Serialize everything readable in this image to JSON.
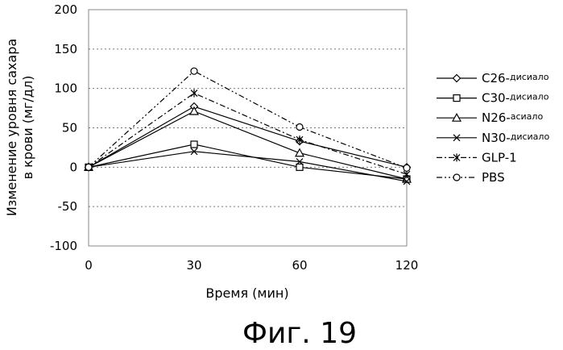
{
  "chart_data": {
    "type": "line",
    "title": "",
    "xlabel": "Время (мин)",
    "ylabel_lines": [
      "Изменение уровня сахара",
      "в крови (мг/дл)"
    ],
    "x": [
      0,
      30,
      60,
      120
    ],
    "x_tick_labels": [
      "0",
      "30",
      "60",
      "120"
    ],
    "ylim": [
      -100,
      200
    ],
    "y_ticks": [
      -100,
      -50,
      0,
      50,
      100,
      150,
      200
    ],
    "grid": "horizontal dashed",
    "legend_position": "right",
    "series": [
      {
        "name": "C26-",
        "name_suffix": "дисиало",
        "marker": "diamond",
        "dash": "solid",
        "values": [
          0,
          77,
          33,
          0
        ]
      },
      {
        "name": "C30-",
        "name_suffix": "дисиало",
        "marker": "square",
        "dash": "solid",
        "values": [
          0,
          29,
          0,
          -15
        ]
      },
      {
        "name": "N26-",
        "name_suffix": "асиало",
        "marker": "triangle",
        "dash": "solid",
        "values": [
          0,
          71,
          18,
          -15
        ]
      },
      {
        "name": "N30-",
        "name_suffix": "дисиало",
        "marker": "x",
        "dash": "solid",
        "values": [
          0,
          20,
          7,
          -18
        ]
      },
      {
        "name": "GLP-1",
        "name_suffix": "",
        "marker": "asterisk",
        "dash": "dashdot",
        "values": [
          0,
          94,
          35,
          -9
        ]
      },
      {
        "name": "PBS",
        "name_suffix": "",
        "marker": "circle",
        "dash": "dashdotdot",
        "values": [
          0,
          122,
          51,
          -1
        ]
      }
    ]
  },
  "caption": "Фиг. 19"
}
